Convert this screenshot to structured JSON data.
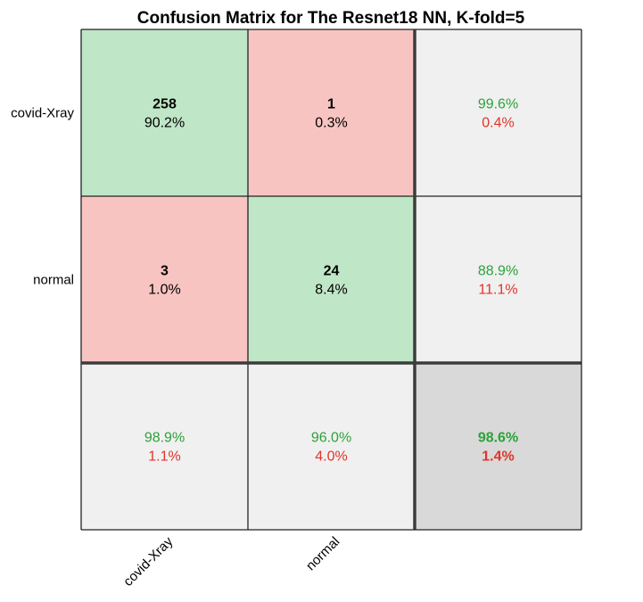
{
  "chart_data": {
    "type": "heatmap",
    "title": "Confusion Matrix for The Resnet18 NN, K-fold=5",
    "row_labels": [
      "covid-Xray",
      "normal"
    ],
    "col_labels": [
      "covid-Xray",
      "normal"
    ],
    "counts": [
      [
        258,
        1
      ],
      [
        3,
        24
      ]
    ],
    "percents": [
      [
        "90.2%",
        "0.3%"
      ],
      [
        "1.0%",
        "8.4%"
      ]
    ],
    "row_summary": [
      {
        "correct": "99.6%",
        "error": "0.4%"
      },
      {
        "correct": "88.9%",
        "error": "11.1%"
      }
    ],
    "col_summary": [
      {
        "correct": "98.9%",
        "error": "1.1%"
      },
      {
        "correct": "96.0%",
        "error": "4.0%"
      }
    ],
    "overall": {
      "correct": "98.6%",
      "error": "1.4%"
    },
    "colors": {
      "correct_cell": "#bfe6c6",
      "error_cell": "#f8c4c1",
      "summary_cell": "#f0f0f0",
      "overall_cell": "#d9d9d9",
      "green_text": "#2ca23a",
      "red_text": "#e0352b"
    }
  }
}
